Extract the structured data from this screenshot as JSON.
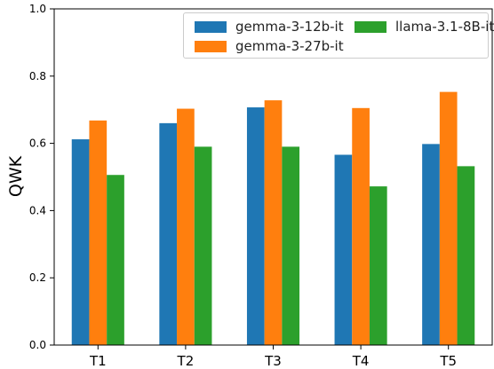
{
  "chart_data": {
    "type": "bar",
    "categories": [
      "T1",
      "T2",
      "T3",
      "T4",
      "T5"
    ],
    "series": [
      {
        "name": "gemma-3-12b-it",
        "color": "#1f77b4",
        "values": [
          0.612,
          0.66,
          0.707,
          0.566,
          0.598
        ]
      },
      {
        "name": "gemma-3-27b-it",
        "color": "#ff7f0e",
        "values": [
          0.668,
          0.703,
          0.728,
          0.705,
          0.753
        ]
      },
      {
        "name": "llama-3.1-8B-it",
        "color": "#2ca02c",
        "values": [
          0.506,
          0.59,
          0.59,
          0.472,
          0.532
        ]
      }
    ],
    "xlabel": "",
    "ylabel": "QWK",
    "ylim": [
      0.0,
      1.0
    ],
    "yticks": [
      "0.0",
      "0.2",
      "0.4",
      "0.6",
      "0.8",
      "1.0"
    ],
    "grid": false,
    "legend": {
      "placement": "top-right",
      "columns": 2
    }
  }
}
